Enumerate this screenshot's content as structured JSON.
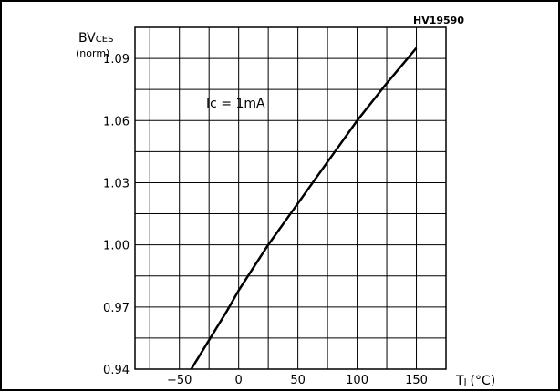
{
  "chart_data": {
    "type": "line",
    "code": "HV19590",
    "ylabel_main": "BV",
    "ylabel_sub": "CES",
    "ylabel_norm": "(norm)",
    "xlabel_main": "T",
    "xlabel_sub": "J",
    "xlabel_unit": "(°C)",
    "annotation": "Ic = 1mA",
    "xlim": [
      -87.5,
      175
    ],
    "ylim": [
      0.94,
      1.105
    ],
    "x_ticks": [
      -50,
      0,
      50,
      100,
      150
    ],
    "x_tick_labels": [
      "−50",
      "0",
      "50",
      "100",
      "150"
    ],
    "y_ticks": [
      0.94,
      0.97,
      1.0,
      1.03,
      1.06,
      1.09
    ],
    "y_tick_labels": [
      "0.94",
      "0.97",
      "1.00",
      "1.03",
      "1.06",
      "1.09"
    ],
    "grid": true,
    "series": [
      {
        "x": [
          -40,
          -10,
          0,
          25,
          50,
          75,
          100,
          125,
          150
        ],
        "y": [
          0.94,
          0.968,
          0.978,
          1.0,
          1.02,
          1.04,
          1.06,
          1.078,
          1.095
        ]
      }
    ]
  }
}
